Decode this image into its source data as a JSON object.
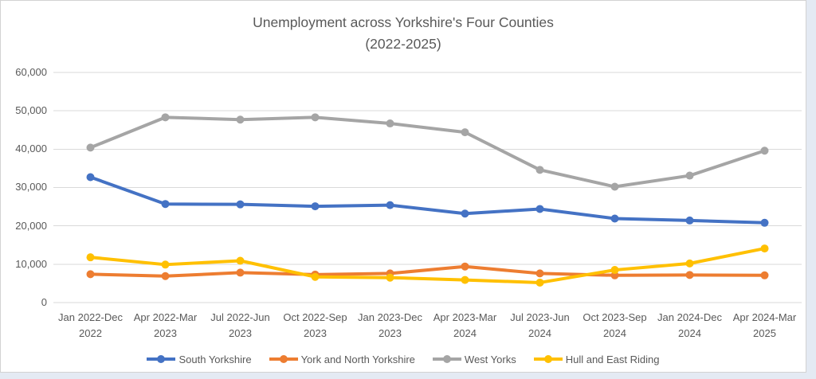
{
  "page": {
    "background_color": "#e4eaf3",
    "chart_background": "#ffffff",
    "chart_border_color": "#d2d2d2"
  },
  "chart_data": {
    "type": "line",
    "title": "Unemployment across Yorkshire's Four Counties",
    "subtitle": "(2022-2025)",
    "title_color": "#595959",
    "axis_text_color": "#595959",
    "gridline_color": "#d9d9d9",
    "grid": true,
    "legend_position": "bottom",
    "xlabel": "",
    "ylabel": "",
    "ylim": [
      0,
      60000
    ],
    "ytick_step": 10000,
    "ytick_labels": [
      "0",
      "10,000",
      "20,000",
      "30,000",
      "40,000",
      "50,000",
      "60,000"
    ],
    "categories": [
      "Jan 2022-Dec 2022",
      "Apr 2022-Mar 2023",
      "Jul 2022-Jun 2023",
      "Oct 2022-Sep 2023",
      "Jan 2023-Dec 2023",
      "Apr 2023-Mar 2024",
      "Jul 2023-Jun 2024",
      "Oct 2023-Sep 2024",
      "Jan 2024-Dec 2024",
      "Apr 2024-Mar 2025"
    ],
    "series": [
      {
        "name": "South Yorkshire",
        "slug": "south-yorkshire",
        "color": "#4472C4",
        "values": [
          32700,
          25700,
          25600,
          25100,
          25400,
          23200,
          24400,
          21900,
          21400,
          20800
        ]
      },
      {
        "name": "York and North Yorkshire",
        "slug": "york-and-north-yorkshire",
        "color": "#ED7D31",
        "values": [
          7400,
          6900,
          7800,
          7300,
          7600,
          9400,
          7600,
          7100,
          7200,
          7100
        ]
      },
      {
        "name": "West Yorks",
        "slug": "west-yorks",
        "color": "#A5A5A5",
        "values": [
          40400,
          48300,
          47700,
          48300,
          46700,
          44400,
          34600,
          30200,
          33100,
          39600
        ]
      },
      {
        "name": "Hull and East Riding",
        "slug": "hull-and-east-riding",
        "color": "#FFC000",
        "values": [
          11800,
          9900,
          10900,
          6700,
          6500,
          5900,
          5200,
          8500,
          10200,
          14100
        ]
      }
    ]
  }
}
